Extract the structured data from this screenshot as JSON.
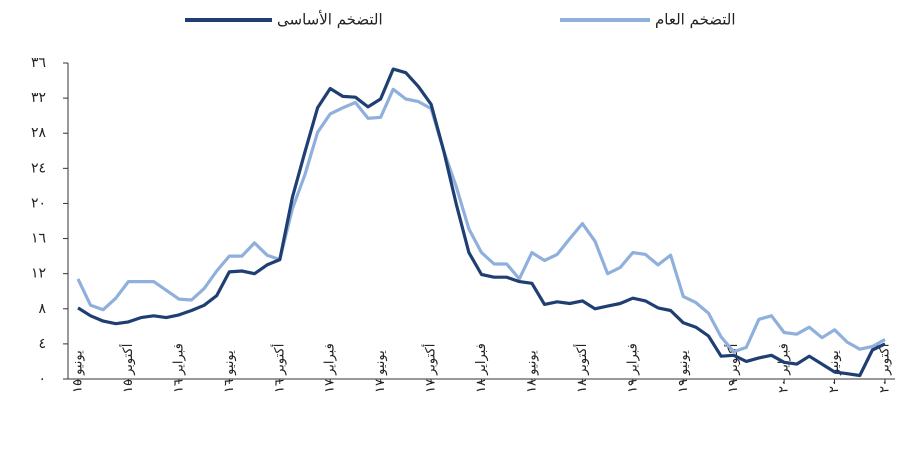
{
  "chart_data": {
    "type": "line",
    "categories": [
      "يونيو ١٥",
      null,
      null,
      null,
      "أكتوبر ١٥",
      null,
      null,
      null,
      "فبراير ١٦",
      null,
      null,
      null,
      "يونيو ١٦",
      null,
      null,
      null,
      "أكتوبر ١٦",
      null,
      null,
      null,
      "فبراير ١٧",
      null,
      null,
      null,
      "يونيو ١٧",
      null,
      null,
      null,
      "أكتوبر ١٧",
      null,
      null,
      null,
      "فبراير ١٨",
      null,
      null,
      null,
      "يونيو ١٨",
      null,
      null,
      null,
      "أكتوبر ١٨",
      null,
      null,
      null,
      "فبراير ١٩",
      null,
      null,
      null,
      "يونيو ١٩",
      null,
      null,
      null,
      "أكتوبر ١٩",
      null,
      null,
      null,
      "فبراير ٢٠",
      null,
      null,
      null,
      "يونيو ٢٠",
      null,
      null,
      null,
      "أكتوبر ٢٠"
    ],
    "series": [
      {
        "name": "التضخم العام",
        "color": "#8fb0dc",
        "values": [
          11.4,
          8.4,
          7.9,
          9.2,
          11.1,
          11.1,
          11.1,
          10.1,
          9.1,
          9.0,
          10.3,
          12.3,
          14.0,
          14.0,
          15.5,
          14.1,
          13.6,
          19.4,
          23.3,
          28.1,
          30.2,
          30.9,
          31.5,
          29.7,
          29.8,
          33.0,
          31.9,
          31.6,
          30.8,
          26.0,
          21.9,
          17.1,
          14.4,
          13.1,
          13.1,
          11.4,
          14.4,
          13.5,
          14.2,
          16.0,
          17.7,
          15.7,
          12.0,
          12.7,
          14.4,
          14.2,
          13.0,
          14.1,
          9.4,
          8.7,
          7.5,
          4.8,
          3.1,
          3.6,
          6.8,
          7.2,
          5.3,
          5.1,
          5.9,
          4.7,
          5.6,
          4.2,
          3.4,
          3.7,
          4.5
        ]
      },
      {
        "name": "التضخم الأساسى",
        "color": "#1f3f73",
        "values": [
          8.1,
          7.2,
          6.6,
          6.3,
          6.5,
          7.0,
          7.2,
          7.0,
          7.3,
          7.8,
          8.4,
          9.5,
          12.2,
          12.3,
          12.0,
          13.0,
          13.6,
          20.7,
          25.9,
          30.9,
          33.1,
          32.2,
          32.1,
          31.0,
          31.9,
          35.3,
          34.9,
          33.3,
          31.3,
          26.0,
          19.9,
          14.4,
          11.9,
          11.6,
          11.6,
          11.1,
          10.9,
          8.5,
          8.8,
          8.6,
          8.9,
          8.0,
          8.3,
          8.6,
          9.2,
          8.9,
          8.1,
          7.8,
          6.4,
          5.9,
          4.9,
          2.6,
          2.7,
          2.0,
          2.4,
          2.7,
          1.9,
          1.7,
          2.6,
          1.7,
          0.8,
          0.6,
          0.4,
          3.3,
          4.0
        ]
      }
    ],
    "ylim": [
      0,
      36
    ],
    "yticks": [
      {
        "value": 0,
        "label": "٠"
      },
      {
        "value": 4,
        "label": "٤"
      },
      {
        "value": 8,
        "label": "٨"
      },
      {
        "value": 12,
        "label": "١٢"
      },
      {
        "value": 16,
        "label": "١٦"
      },
      {
        "value": 20,
        "label": "٢٠"
      },
      {
        "value": 24,
        "label": "٢٤"
      },
      {
        "value": 28,
        "label": "٢٨"
      },
      {
        "value": 32,
        "label": "٣٢"
      },
      {
        "value": 36,
        "label": "٣٦"
      }
    ]
  }
}
